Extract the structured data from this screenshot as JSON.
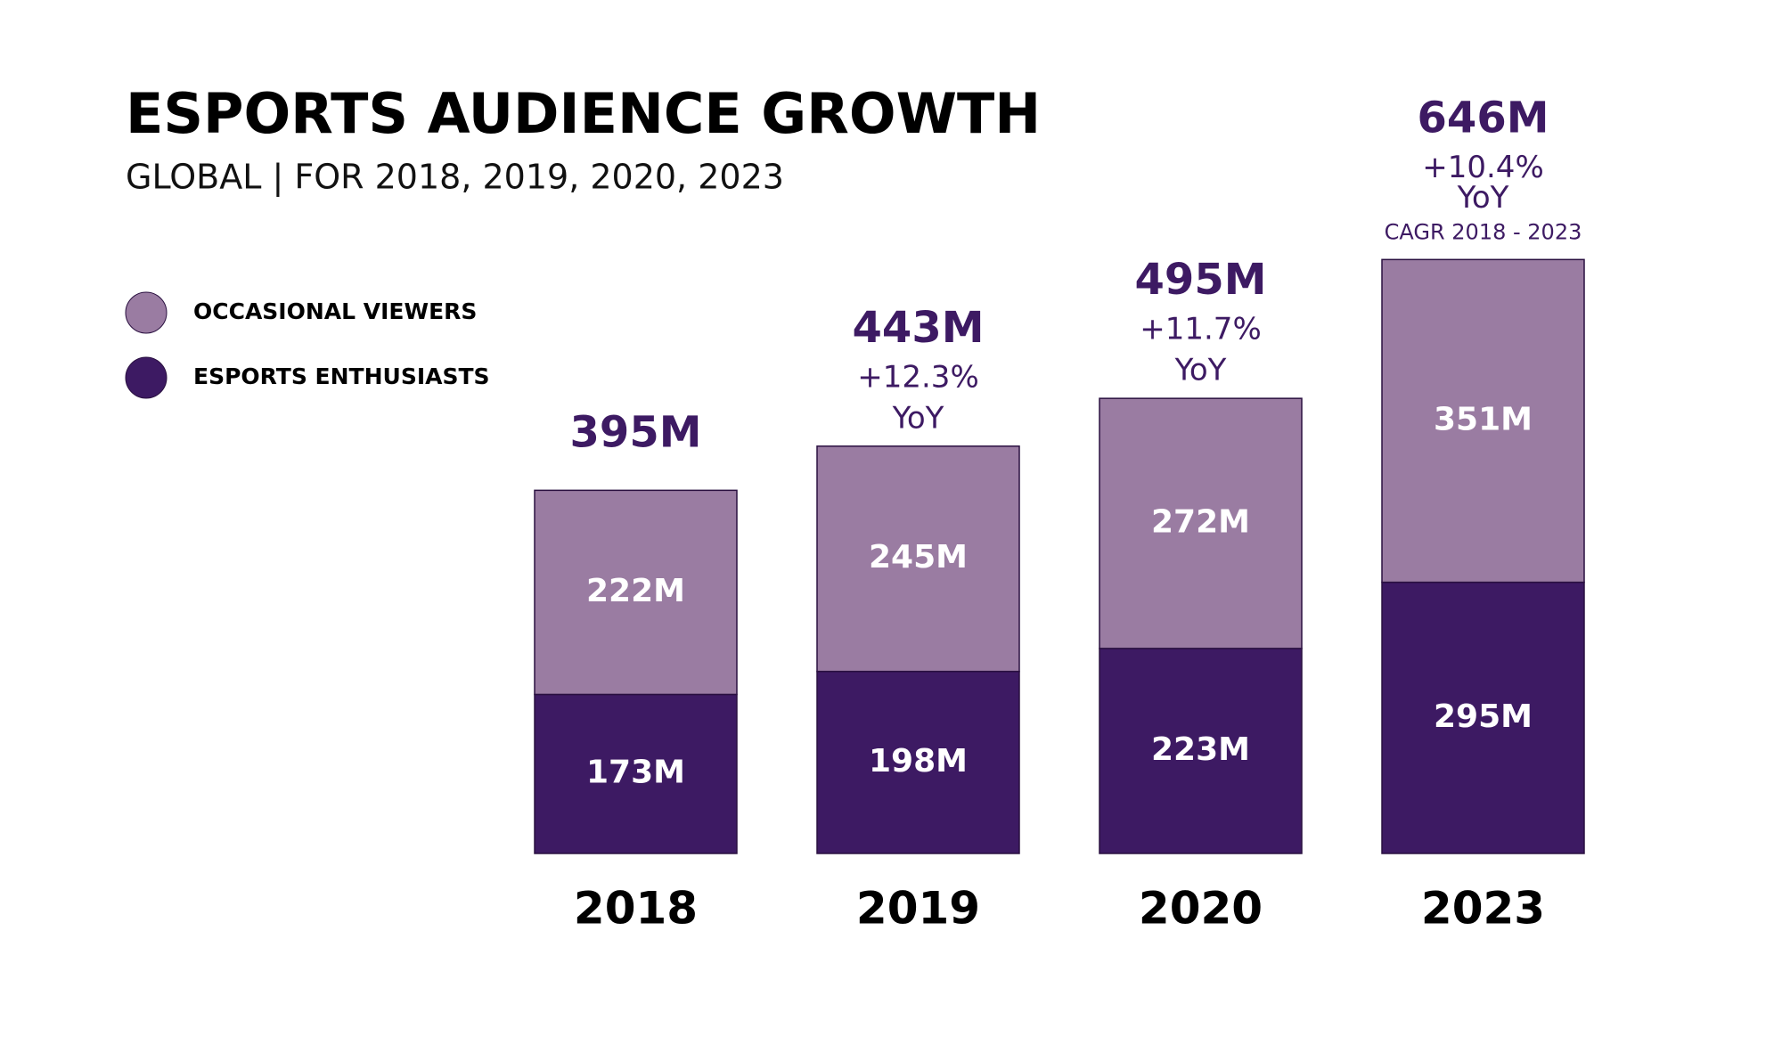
{
  "chart_data": {
    "type": "stacked_bar",
    "title": "ESPORTS AUDIENCE GROWTH",
    "subtitle": "GLOBAL | FOR 2018, 2019, 2020, 2023",
    "categories": [
      "2018",
      "2019",
      "2020",
      "2023"
    ],
    "series": [
      {
        "name": "ESPORTS ENTHUSIASTS",
        "color": "#3d1a63",
        "values": [
          173,
          198,
          223,
          295
        ],
        "value_labels": [
          "173M",
          "198M",
          "223M",
          "295M"
        ]
      },
      {
        "name": "OCCASIONAL VIEWERS",
        "color": "#9a7ca2",
        "values": [
          222,
          245,
          272,
          351
        ],
        "value_labels": [
          "222M",
          "245M",
          "272M",
          "351M"
        ]
      }
    ],
    "totals": {
      "values": [
        395,
        443,
        495,
        646
      ],
      "value_labels": [
        "395M",
        "443M",
        "495M",
        "646M"
      ]
    },
    "annotations": [
      {
        "category": "2019",
        "lines": [
          "+12.3%",
          "YoY"
        ]
      },
      {
        "category": "2020",
        "lines": [
          "+11.7%",
          "YoY"
        ]
      },
      {
        "category": "2023",
        "lines": [
          "+10.4%",
          "YoY",
          "CAGR 2018 - 2023"
        ]
      }
    ]
  }
}
